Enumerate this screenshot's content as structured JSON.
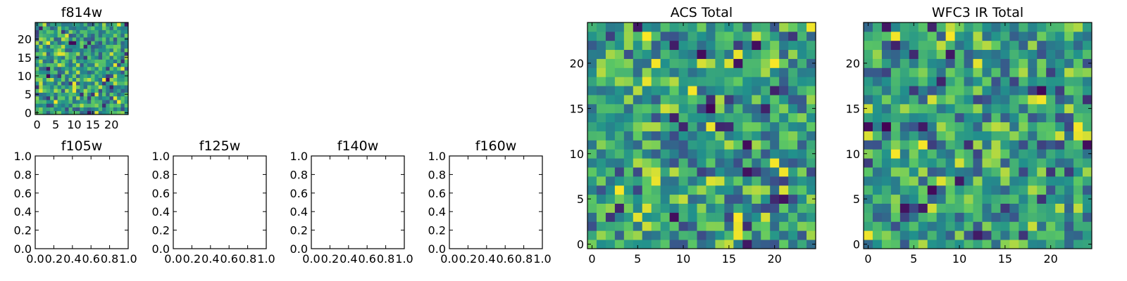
{
  "figure": {
    "background": "#ffffff"
  },
  "colormap": [
    "#440154",
    "#3b528b",
    "#21918c",
    "#5ec962",
    "#fde725"
  ],
  "chart_data": [
    {
      "id": "f814w",
      "type": "heatmap",
      "title": "f814w",
      "grid": [
        25,
        25
      ],
      "vmin": 0,
      "vmax": 1,
      "xticks": [
        "0",
        "5",
        "10",
        "15",
        "20"
      ],
      "yticks": [
        "0",
        "5",
        "10",
        "15",
        "20"
      ],
      "xlim": [
        -0.5,
        24.5
      ],
      "ylim": [
        -0.5,
        24.5
      ]
    },
    {
      "id": "f105w",
      "type": "empty",
      "title": "f105w",
      "xticks": [
        "0.0",
        "0.2",
        "0.4",
        "0.6",
        "0.8",
        "1.0"
      ],
      "yticks": [
        "0.0",
        "0.2",
        "0.4",
        "0.6",
        "0.8",
        "1.0"
      ],
      "xlim": [
        0,
        1
      ],
      "ylim": [
        0,
        1
      ]
    },
    {
      "id": "f125w",
      "type": "empty",
      "title": "f125w",
      "xticks": [
        "0.0",
        "0.2",
        "0.4",
        "0.6",
        "0.8",
        "1.0"
      ],
      "yticks": [
        "0.0",
        "0.2",
        "0.4",
        "0.6",
        "0.8",
        "1.0"
      ],
      "xlim": [
        0,
        1
      ],
      "ylim": [
        0,
        1
      ]
    },
    {
      "id": "f140w",
      "type": "empty",
      "title": "f140w",
      "xticks": [
        "0.0",
        "0.2",
        "0.4",
        "0.6",
        "0.8",
        "1.0"
      ],
      "yticks": [
        "0.0",
        "0.2",
        "0.4",
        "0.6",
        "0.8",
        "1.0"
      ],
      "xlim": [
        0,
        1
      ],
      "ylim": [
        0,
        1
      ]
    },
    {
      "id": "f160w",
      "type": "empty",
      "title": "f160w",
      "xticks": [
        "0.0",
        "0.2",
        "0.4",
        "0.6",
        "0.8",
        "1.0"
      ],
      "yticks": [
        "0.0",
        "0.2",
        "0.4",
        "0.6",
        "0.8",
        "1.0"
      ],
      "xlim": [
        0,
        1
      ],
      "ylim": [
        0,
        1
      ]
    },
    {
      "id": "acs_total",
      "type": "heatmap",
      "title": "ACS Total",
      "grid": [
        25,
        25
      ],
      "vmin": 0,
      "vmax": 1,
      "xticks": [
        "0",
        "5",
        "10",
        "15",
        "20"
      ],
      "yticks": [
        "0",
        "5",
        "10",
        "15",
        "20"
      ],
      "xlim": [
        -0.5,
        24.5
      ],
      "ylim": [
        -0.5,
        24.5
      ]
    },
    {
      "id": "wfc3_ir_total",
      "type": "heatmap",
      "title": "WFC3 IR Total",
      "grid": [
        25,
        25
      ],
      "vmin": 0,
      "vmax": 1,
      "xticks": [
        "0",
        "5",
        "10",
        "15",
        "20"
      ],
      "yticks": [
        "0",
        "5",
        "10",
        "15",
        "20"
      ],
      "xlim": [
        -0.5,
        24.5
      ],
      "ylim": [
        -0.5,
        24.5
      ]
    }
  ]
}
